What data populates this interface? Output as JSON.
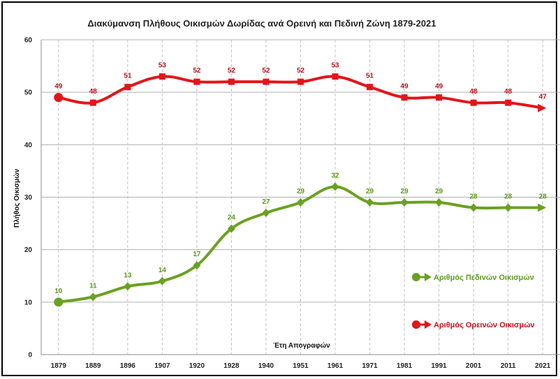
{
  "chart_data": {
    "type": "line",
    "title": "Διακύμανση Πλήθους Οικισμών Δωρίδας ανά Ορεινή και Πεδινή Ζώνη 1879-2021",
    "xlabel": "Έτη Απογραφών",
    "ylabel": "Πλήθος Οικισμών",
    "ylim": [
      0,
      60
    ],
    "yticks": [
      0,
      10,
      20,
      30,
      40,
      50,
      60
    ],
    "categories": [
      "1879",
      "1889",
      "1896",
      "1907",
      "1920",
      "1928",
      "1940",
      "1951",
      "1961",
      "1971",
      "1981",
      "1991",
      "2001",
      "2011",
      "2021"
    ],
    "grid": "vertical dashed + horizontal solid",
    "legend_position": "right",
    "series": [
      {
        "name": "Αριθμός Ορεινών Οικισμών",
        "color": "#e3151a",
        "label_color": "#c0121a",
        "values": [
          49,
          48,
          51,
          53,
          52,
          52,
          52,
          52,
          53,
          51,
          49,
          49,
          48,
          48,
          47
        ]
      },
      {
        "name": "Αριθμός Πεδινών Οικισμών",
        "color": "#6aa121",
        "label_color": "#5e9a1c",
        "values": [
          10,
          11,
          13,
          14,
          17,
          24,
          27,
          29,
          32,
          29,
          29,
          29,
          28,
          28,
          28
        ]
      }
    ]
  }
}
